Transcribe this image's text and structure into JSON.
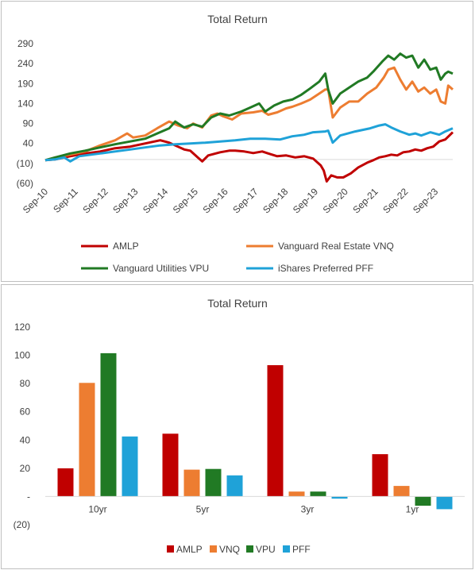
{
  "chart_data": [
    {
      "type": "line",
      "title": "Total Return",
      "xlabel": "",
      "ylabel": "",
      "ylim": [
        -60,
        290
      ],
      "yticks": [
        290,
        240,
        190,
        140,
        90,
        40,
        -10,
        -60
      ],
      "ytick_labels": [
        "290",
        "240",
        "190",
        "140",
        "90",
        "40",
        "(10)",
        "(60)"
      ],
      "xlim": [
        2010.67,
        2024.25
      ],
      "xtick_labels": [
        "Sep-10",
        "Sep-11",
        "Sep-12",
        "Sep-13",
        "Sep-14",
        "Sep-15",
        "Sep-16",
        "Sep-17",
        "Sep-18",
        "Sep-19",
        "Sep-20",
        "Sep-21",
        "Sep-22",
        "Sep-23"
      ],
      "grid": false,
      "legend": "bottom",
      "series": [
        {
          "name": "AMLP",
          "color": "#C00000",
          "x": [
            2010.67,
            2011.0,
            2011.5,
            2012.0,
            2012.5,
            2013.0,
            2013.5,
            2014.0,
            2014.5,
            2014.8,
            2015.0,
            2015.3,
            2015.5,
            2015.75,
            2015.9,
            2016.1,
            2016.5,
            2016.8,
            2017.0,
            2017.3,
            2017.6,
            2017.9,
            2018.1,
            2018.4,
            2018.7,
            2019.0,
            2019.3,
            2019.6,
            2019.85,
            2019.95,
            2020.05,
            2020.2,
            2020.4,
            2020.6,
            2020.85,
            2021.1,
            2021.4,
            2021.6,
            2021.8,
            2022.0,
            2022.2,
            2022.4,
            2022.6,
            2022.8,
            2023.0,
            2023.2,
            2023.4,
            2023.6,
            2023.8,
            2024.0,
            2024.25
          ],
          "y": [
            -2,
            0,
            8,
            15,
            20,
            28,
            32,
            40,
            48,
            42,
            35,
            25,
            22,
            5,
            -5,
            10,
            18,
            22,
            22,
            20,
            16,
            20,
            15,
            8,
            10,
            5,
            8,
            2,
            -15,
            -28,
            -55,
            -40,
            -45,
            -45,
            -35,
            -20,
            -8,
            -2,
            5,
            8,
            12,
            10,
            18,
            20,
            25,
            22,
            28,
            32,
            45,
            50,
            68
          ]
        },
        {
          "name": "Vanguard Real Estate VNQ",
          "color": "#ED7D31",
          "x": [
            2010.67,
            2011.0,
            2011.5,
            2012.0,
            2012.5,
            2013.0,
            2013.4,
            2013.6,
            2014.0,
            2014.4,
            2014.8,
            2015.1,
            2015.4,
            2015.6,
            2015.9,
            2016.2,
            2016.4,
            2016.6,
            2016.9,
            2017.2,
            2017.6,
            2017.9,
            2018.1,
            2018.4,
            2018.7,
            2018.9,
            2019.2,
            2019.5,
            2019.8,
            2020.0,
            2020.1,
            2020.25,
            2020.5,
            2020.8,
            2021.1,
            2021.4,
            2021.7,
            2021.95,
            2022.1,
            2022.3,
            2022.5,
            2022.7,
            2022.9,
            2023.1,
            2023.3,
            2023.5,
            2023.7,
            2023.85,
            2024.0,
            2024.1,
            2024.25
          ],
          "y": [
            -2,
            5,
            12,
            20,
            35,
            48,
            65,
            55,
            60,
            78,
            95,
            85,
            78,
            90,
            80,
            110,
            115,
            108,
            100,
            115,
            118,
            122,
            112,
            118,
            128,
            132,
            140,
            150,
            165,
            175,
            175,
            105,
            130,
            145,
            145,
            165,
            180,
            205,
            225,
            230,
            200,
            175,
            195,
            170,
            180,
            165,
            175,
            145,
            140,
            185,
            175
          ]
        },
        {
          "name": "Vanguard Utilities VPU",
          "color": "#217A24",
          "x": [
            2010.67,
            2011.0,
            2011.5,
            2012.0,
            2012.5,
            2013.0,
            2013.5,
            2014.0,
            2014.4,
            2014.8,
            2015.0,
            2015.3,
            2015.6,
            2015.9,
            2016.2,
            2016.5,
            2016.8,
            2017.2,
            2017.5,
            2017.8,
            2018.0,
            2018.3,
            2018.6,
            2018.9,
            2019.2,
            2019.5,
            2019.8,
            2020.0,
            2020.1,
            2020.25,
            2020.5,
            2020.8,
            2021.1,
            2021.4,
            2021.6,
            2021.9,
            2022.1,
            2022.3,
            2022.5,
            2022.7,
            2022.9,
            2023.1,
            2023.3,
            2023.5,
            2023.7,
            2023.85,
            2024.0,
            2024.1,
            2024.25
          ],
          "y": [
            -2,
            5,
            15,
            22,
            30,
            38,
            45,
            52,
            65,
            78,
            95,
            80,
            88,
            82,
            105,
            115,
            110,
            120,
            130,
            140,
            120,
            135,
            145,
            150,
            162,
            178,
            195,
            215,
            175,
            140,
            165,
            180,
            195,
            205,
            220,
            245,
            260,
            250,
            265,
            255,
            260,
            230,
            250,
            225,
            230,
            200,
            215,
            220,
            215
          ]
        },
        {
          "name": "iShares Preferred PFF",
          "color": "#1FA2D8",
          "x": [
            2010.67,
            2011.0,
            2011.3,
            2011.5,
            2011.8,
            2012.0,
            2012.5,
            2013.0,
            2013.5,
            2014.0,
            2014.5,
            2015.0,
            2015.5,
            2016.0,
            2016.5,
            2017.0,
            2017.5,
            2018.0,
            2018.5,
            2018.9,
            2019.3,
            2019.6,
            2020.0,
            2020.1,
            2020.25,
            2020.5,
            2021.0,
            2021.5,
            2021.8,
            2022.0,
            2022.2,
            2022.5,
            2022.8,
            2023.0,
            2023.2,
            2023.5,
            2023.8,
            2024.0,
            2024.25
          ],
          "y": [
            -2,
            0,
            5,
            -5,
            8,
            10,
            15,
            20,
            25,
            30,
            35,
            38,
            40,
            42,
            45,
            48,
            52,
            52,
            50,
            58,
            62,
            68,
            70,
            72,
            42,
            60,
            70,
            78,
            85,
            88,
            80,
            70,
            62,
            65,
            60,
            68,
            62,
            70,
            78
          ]
        }
      ]
    },
    {
      "type": "bar",
      "title": "Total Return",
      "xlabel": "",
      "ylabel": "",
      "ylim": [
        -20,
        120
      ],
      "yticks": [
        120,
        100,
        80,
        60,
        40,
        20,
        0,
        -20
      ],
      "ytick_labels": [
        "120",
        "100",
        "80",
        "60",
        "40",
        "20",
        "-",
        "(20)"
      ],
      "categories": [
        "10yr",
        "5yr",
        "3yr",
        "1yr"
      ],
      "grid": false,
      "legend": "bottom",
      "series": [
        {
          "name": "AMLP",
          "color": "#C00000",
          "values": [
            20,
            44.5,
            93,
            30
          ]
        },
        {
          "name": "VNQ",
          "color": "#ED7D31",
          "values": [
            80.5,
            19,
            3.5,
            7.5
          ]
        },
        {
          "name": "VPU",
          "color": "#217A24",
          "values": [
            101.5,
            19.5,
            3.5,
            -6.5
          ]
        },
        {
          "name": "PFF",
          "color": "#1FA2D8",
          "values": [
            42.5,
            15,
            -1.5,
            -9
          ]
        }
      ]
    }
  ]
}
